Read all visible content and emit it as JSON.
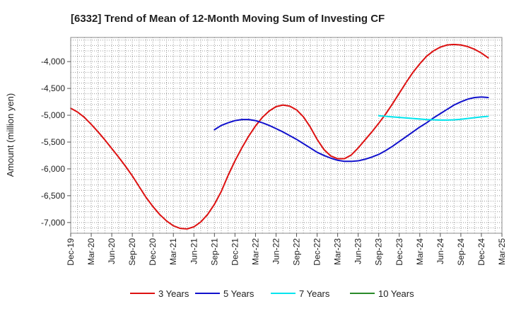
{
  "chart_data": {
    "type": "line",
    "title": "[6332]  Trend of Mean of 12-Month Moving Sum of Investing CF",
    "xlabel": "",
    "ylabel": "Amount (million yen)",
    "ylim": [
      -7200,
      -3550
    ],
    "yticks": [
      -7000,
      -6500,
      -6000,
      -5500,
      -5000,
      -4500,
      -4000
    ],
    "ytick_labels": [
      "-7,000",
      "-6,500",
      "-6,000",
      "-5,500",
      "-5,000",
      "-4,500",
      "-4,000"
    ],
    "x_months": 63,
    "xtick_labels": [
      "Dec-19",
      "Mar-20",
      "Jun-20",
      "Sep-20",
      "Dec-20",
      "Mar-21",
      "Jun-21",
      "Sep-21",
      "Dec-21",
      "Mar-22",
      "Jun-22",
      "Sep-22",
      "Dec-22",
      "Mar-23",
      "Jun-23",
      "Sep-23",
      "Dec-23",
      "Mar-24",
      "Jun-24",
      "Sep-24",
      "Dec-24",
      "Mar-25"
    ],
    "series": [
      {
        "name": "3 Years",
        "color": "#dd1111",
        "start": 0,
        "values": [
          -4870,
          -4940,
          -5040,
          -5170,
          -5310,
          -5460,
          -5620,
          -5780,
          -5950,
          -6130,
          -6330,
          -6530,
          -6700,
          -6850,
          -6970,
          -7060,
          -7110,
          -7120,
          -7080,
          -6990,
          -6850,
          -6660,
          -6420,
          -6120,
          -5850,
          -5610,
          -5390,
          -5200,
          -5040,
          -4920,
          -4840,
          -4810,
          -4830,
          -4900,
          -5030,
          -5220,
          -5450,
          -5640,
          -5760,
          -5810,
          -5810,
          -5740,
          -5610,
          -5460,
          -5310,
          -5150,
          -4980,
          -4790,
          -4590,
          -4390,
          -4200,
          -4040,
          -3900,
          -3800,
          -3730,
          -3690,
          -3680,
          -3690,
          -3720,
          -3770,
          -3840,
          -3930
        ]
      },
      {
        "name": "5 Years",
        "color": "#1111cc",
        "start": 21,
        "values": [
          -5270,
          -5190,
          -5140,
          -5100,
          -5080,
          -5080,
          -5100,
          -5140,
          -5190,
          -5250,
          -5310,
          -5380,
          -5450,
          -5530,
          -5610,
          -5690,
          -5750,
          -5800,
          -5840,
          -5860,
          -5860,
          -5850,
          -5820,
          -5780,
          -5730,
          -5660,
          -5580,
          -5490,
          -5400,
          -5310,
          -5220,
          -5140,
          -5050,
          -4970,
          -4890,
          -4810,
          -4750,
          -4700,
          -4670,
          -4660,
          -4670
        ]
      },
      {
        "name": "7 Years",
        "color": "#00e5ee",
        "start": 45,
        "values": [
          -5010,
          -5020,
          -5030,
          -5040,
          -5050,
          -5060,
          -5070,
          -5080,
          -5085,
          -5090,
          -5090,
          -5085,
          -5075,
          -5060,
          -5045,
          -5030,
          -5020
        ]
      },
      {
        "name": "10 Years",
        "color": "#2a8a2a",
        "start": 0,
        "values": []
      }
    ],
    "grid": true,
    "legend_position": "bottom"
  }
}
